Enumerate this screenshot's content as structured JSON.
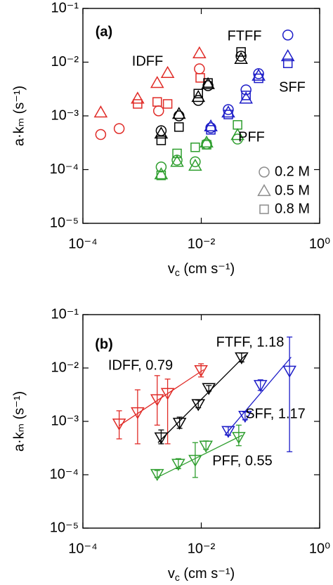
{
  "chart_data": [
    {
      "type": "scatter",
      "title": "(a)",
      "log": true,
      "x_label": [
        "v",
        "c",
        " (cm s⁻¹)"
      ],
      "y_label": "a·kₘ (s⁻¹)",
      "xlim": [
        0.0001,
        1
      ],
      "ylim": [
        1e-05,
        0.1
      ],
      "xticks": [
        {
          "value": 0.0001,
          "label": "10⁻⁴"
        },
        {
          "value": 0.01,
          "label": "10⁻²"
        },
        {
          "value": 1,
          "label": "10⁰"
        }
      ],
      "yticks": [
        {
          "value": 1e-05,
          "label": "10⁻⁵"
        },
        {
          "value": 0.0001,
          "label": "10⁻⁴"
        },
        {
          "value": 0.001,
          "label": "10⁻³"
        },
        {
          "value": 0.01,
          "label": "10⁻²"
        },
        {
          "value": 0.1,
          "label": "10⁻¹"
        }
      ],
      "annotations": [
        {
          "text": "IDFF",
          "color": "#e02b27"
        },
        {
          "text": "FTFF",
          "color": "#000000"
        },
        {
          "text": "SFF",
          "color": "#1c1cc8"
        },
        {
          "text": "PFF",
          "color": "#2e9e2e"
        }
      ],
      "legend": {
        "color": "#8c8c8c",
        "entries": [
          {
            "label": "0.2 M",
            "marker": "circle"
          },
          {
            "label": "0.5 M",
            "marker": "triangle"
          },
          {
            "label": "0.8 M",
            "marker": "square"
          }
        ]
      },
      "series": [
        {
          "color": "#e02b27",
          "marker": "circle",
          "x": [
            0.0002,
            0.00041,
            0.0019,
            0.0093
          ],
          "values": [
            0.00045,
            0.00058,
            0.00124,
            0.0075
          ]
        },
        {
          "color": "#e02b27",
          "marker": "triangle",
          "x": [
            0.0002,
            0.00084,
            0.0018,
            0.0027,
            0.0093
          ],
          "values": [
            0.00116,
            0.0021,
            0.0041,
            0.0063,
            0.0146
          ]
        },
        {
          "color": "#e02b27",
          "marker": "square",
          "x": [
            0.00084,
            0.0018,
            0.0027,
            0.0096
          ],
          "values": [
            0.00167,
            0.00182,
            0.00167,
            0.0051
          ]
        },
        {
          "color": "#000000",
          "marker": "circle",
          "x": [
            0.0021,
            0.0042,
            0.0089,
            0.013,
            0.047
          ],
          "values": [
            0.00053,
            0.001,
            0.00194,
            0.00365,
            0.0129
          ]
        },
        {
          "color": "#000000",
          "marker": "triangle",
          "x": [
            0.0021,
            0.0042,
            0.0089,
            0.013,
            0.047
          ],
          "values": [
            0.00047,
            0.00109,
            0.00225,
            0.0039,
            0.0115
          ]
        },
        {
          "color": "#000000",
          "marker": "square",
          "x": [
            0.0021,
            0.0042,
            0.0089,
            0.013,
            0.047
          ],
          "values": [
            0.00035,
            0.00062,
            0.0026,
            0.0041,
            0.0155
          ]
        },
        {
          "color": "#1c1cc8",
          "marker": "circle",
          "x": [
            0.0145,
            0.0286,
            0.057,
            0.093,
            0.29
          ],
          "values": [
            0.0006,
            0.00131,
            0.00305,
            0.0061,
            0.032
          ]
        },
        {
          "color": "#1c1cc8",
          "marker": "triangle",
          "x": [
            0.0145,
            0.0286,
            0.057,
            0.093,
            0.29
          ],
          "values": [
            0.00064,
            0.00116,
            0.0021,
            0.0056,
            0.0129
          ]
        },
        {
          "color": "#1c1cc8",
          "marker": "square",
          "x": [
            0.0145,
            0.0286,
            0.057,
            0.093,
            0.29
          ],
          "values": [
            0.00055,
            0.00106,
            0.0024,
            0.005,
            0.0095
          ]
        },
        {
          "color": "#2e9e2e",
          "marker": "circle",
          "x": [
            0.0021,
            0.0039,
            0.0079,
            0.0123,
            0.041
          ],
          "values": [
            0.000112,
            0.00015,
            0.00014,
            0.0003,
            0.00037
          ]
        },
        {
          "color": "#2e9e2e",
          "marker": "triangle",
          "x": [
            0.0021,
            0.0039,
            0.0079,
            0.0123,
            0.041
          ],
          "values": [
            8.2e-05,
            0.00014,
            0.000118,
            0.00032,
            0.00044
          ]
        },
        {
          "color": "#2e9e2e",
          "marker": "square",
          "x": [
            0.0021,
            0.0039,
            0.0079,
            0.0123,
            0.041
          ],
          "values": [
            7.8e-05,
            0.0002,
            0.00026,
            0.00029,
            0.00068
          ]
        }
      ]
    },
    {
      "type": "errorbar",
      "title": "(b)",
      "log": true,
      "x_label": [
        "v",
        "c",
        " (cm s⁻¹)"
      ],
      "y_label": "a·kₘ (s⁻¹)",
      "xlim": [
        0.0001,
        1
      ],
      "ylim": [
        1e-05,
        0.1
      ],
      "xticks": [
        {
          "value": 0.0001,
          "label": "10⁻⁴"
        },
        {
          "value": 0.01,
          "label": "10⁻²"
        },
        {
          "value": 1,
          "label": "10⁰"
        }
      ],
      "yticks": [
        {
          "value": 1e-05,
          "label": "10⁻⁵"
        },
        {
          "value": 0.0001,
          "label": "10⁻⁴"
        },
        {
          "value": 0.001,
          "label": "10⁻³"
        },
        {
          "value": 0.01,
          "label": "10⁻²"
        },
        {
          "value": 0.1,
          "label": "10⁻¹"
        }
      ],
      "series": [
        {
          "label": "IDFF, 0.79",
          "color": "#e02b27",
          "marker": "triangle-down",
          "x": [
            0.00041,
            0.00084,
            0.0018,
            0.0027,
            0.0099
          ],
          "values": [
            0.00091,
            0.00148,
            0.0026,
            0.0034,
            0.0091
          ],
          "lower": [
            0.00047,
            0.00038,
            0.00085,
            0.00038,
            0.0068
          ],
          "upper": [
            0.00158,
            0.0039,
            0.0072,
            0.0062,
            0.012
          ],
          "fit_x": [
            0.00041,
            0.011
          ],
          "fit_y": [
            0.00083,
            0.0093
          ]
        },
        {
          "label": "FTFF, 1.18",
          "color": "#000000",
          "marker": "triangle-down",
          "x": [
            0.0021,
            0.0043,
            0.0089,
            0.0134,
            0.048
          ],
          "values": [
            0.0005,
            0.00094,
            0.0021,
            0.0042,
            0.0158
          ],
          "lower": [
            0.00038,
            0.00074,
            0.0018,
            0.0037,
            0.013
          ],
          "upper": [
            0.00069,
            0.0012,
            0.0025,
            0.0047,
            0.019
          ],
          "fit_x": [
            0.00186,
            0.057
          ],
          "fit_y": [
            0.0004,
            0.0178
          ]
        },
        {
          "label": "SFF, 1.17",
          "color": "#1c1cc8",
          "marker": "triangle-down",
          "x": [
            0.0286,
            0.055,
            0.1,
            0.31
          ],
          "values": [
            0.00066,
            0.00127,
            0.0048,
            0.0089
          ],
          "lower": [
            0.00055,
            0.00107,
            0.0038,
            0.00027
          ],
          "upper": [
            0.00079,
            0.0015,
            0.006,
            0.038
          ],
          "fit_x": [
            0.025,
            0.33
          ],
          "fit_y": [
            0.00055,
            0.016
          ]
        },
        {
          "label": "PFF, 0.55",
          "color": "#2e9e2e",
          "marker": "triangle-down",
          "x": [
            0.0018,
            0.0041,
            0.0079,
            0.012,
            0.043
          ],
          "values": [
            0.000103,
            0.00016,
            0.00019,
            0.00035,
            0.00051
          ],
          "lower": [
            8.9e-05,
            0.00013,
            8.9e-05,
            0.0003,
            0.00035
          ],
          "upper": [
            0.00012,
            0.0002,
            0.0004,
            0.00043,
            0.00085
          ],
          "fit_x": [
            0.0018,
            0.049
          ],
          "fit_y": [
            8.9e-05,
            0.00055
          ]
        }
      ]
    }
  ]
}
